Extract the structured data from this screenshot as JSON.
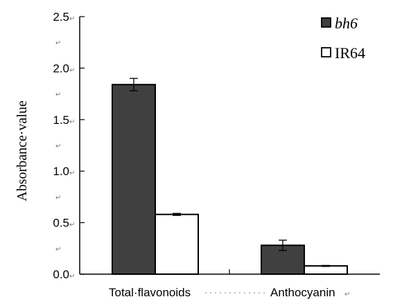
{
  "chart_data": {
    "type": "bar",
    "categories": [
      "Total·flavonoids",
      "Anthocyanin"
    ],
    "series": [
      {
        "name": "bh6",
        "values": [
          1.84,
          0.28
        ],
        "errors": [
          0.06,
          0.05
        ],
        "color": "#404040"
      },
      {
        "name": "IR64",
        "values": [
          0.58,
          0.08
        ],
        "errors": [
          0.01,
          0.005
        ],
        "color": "#ffffff"
      }
    ],
    "ylabel": "Absorbance·value",
    "ylim": [
      0,
      2.5
    ],
    "yticks": [
      "0.0",
      "0.5",
      "1.0",
      "1.5",
      "2.0",
      "2.5"
    ],
    "legend_position": "top-right",
    "grid": false
  }
}
